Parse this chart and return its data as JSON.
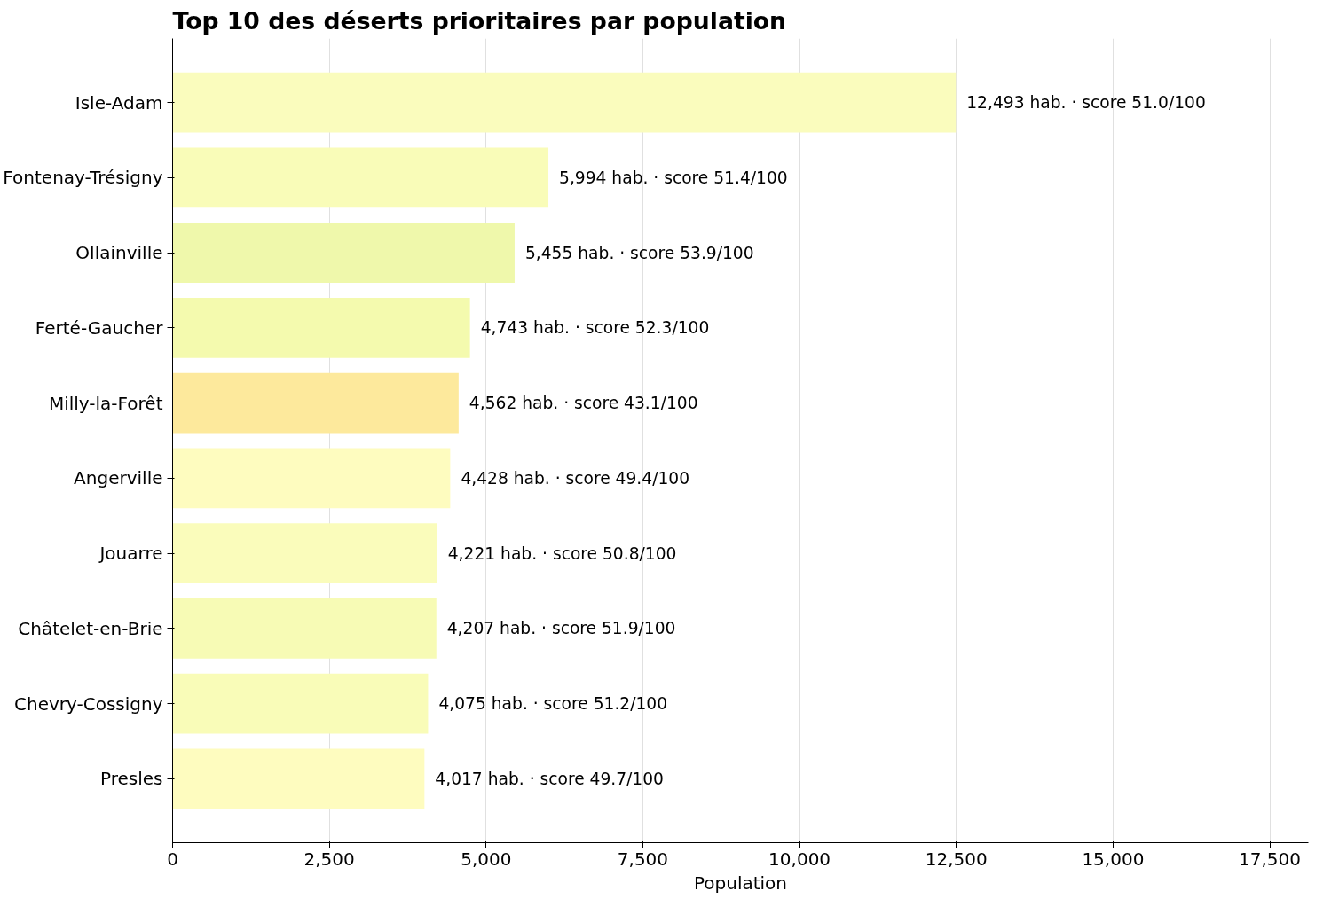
{
  "chart_data": {
    "type": "bar",
    "orientation": "horizontal",
    "title": "Top 10 des déserts prioritaires par population",
    "xlabel": "Population",
    "categories": [
      "Isle-Adam",
      "Fontenay-Trésigny",
      "Ollainville",
      "Ferté-Gaucher",
      "Milly-la-Forêt",
      "Angerville",
      "Jouarre",
      "Châtelet-en-Brie",
      "Chevry-Cossigny",
      "Presles"
    ],
    "values": [
      12493,
      5994,
      5455,
      4743,
      4562,
      4428,
      4221,
      4207,
      4075,
      4017
    ],
    "colors": [
      "#fafcbd",
      "#f9fcb8",
      "#eff8ab",
      "#f4faae",
      "#fde99c",
      "#fefcbf",
      "#fafcbb",
      "#f7fbb5",
      "#f9fcb8",
      "#fefcbf"
    ],
    "value_labels": [
      "12,493 hab.  ·  score 51.0/100",
      "5,994 hab.  ·  score 51.4/100",
      "5,455 hab.  ·  score 53.9/100",
      "4,743 hab.  ·  score 52.3/100",
      "4,562 hab.  ·  score 43.1/100",
      "4,428 hab.  ·  score 49.4/100",
      "4,221 hab.  ·  score 50.8/100",
      "4,207 hab.  ·  score 51.9/100",
      "4,075 hab.  ·  score 51.2/100",
      "4,017 hab.  ·  score 49.7/100"
    ],
    "xlim": [
      0,
      18115
    ],
    "xticks": [
      {
        "value": 0,
        "label": "0"
      },
      {
        "value": 2500,
        "label": "2,500"
      },
      {
        "value": 5000,
        "label": "5,000"
      },
      {
        "value": 7500,
        "label": "7,500"
      },
      {
        "value": 10000,
        "label": "10,000"
      },
      {
        "value": 12500,
        "label": "12,500"
      },
      {
        "value": 15000,
        "label": "15,000"
      },
      {
        "value": 17500,
        "label": "17,500"
      }
    ],
    "grid": "x"
  }
}
